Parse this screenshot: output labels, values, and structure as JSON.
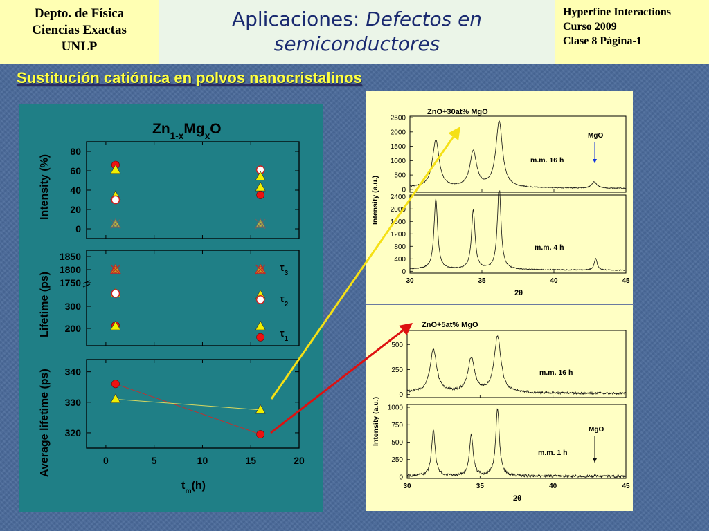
{
  "header": {
    "left_lines": [
      "Depto. de Física",
      "Ciencias Exactas",
      "UNLP"
    ],
    "title_line1_prefix": "Aplicaciones: ",
    "title_line1_italic": "Defectos en",
    "title_line2_italic": "semiconductores",
    "right_lines": [
      "Hyperfine Interactions",
      "Curso 2009",
      "Clase 8  Página-1"
    ]
  },
  "subtitle": "Sustitución catiónica en polvos nanocristalinos",
  "colors": {
    "red": "#ee1111",
    "yellow": "#f0f000",
    "arrow_yellow": "#f5e015",
    "arrow_red": "#dd1111"
  },
  "chart_data": [
    {
      "type": "scatter",
      "title": {
        "main": "Zn",
        "sub1": "1-x",
        "mid": "Mg",
        "sub2": "x",
        "end": "O"
      },
      "xlabel": {
        "main": "t",
        "sub": "m",
        "end": "(h)"
      },
      "xlim": [
        -2,
        20
      ],
      "xticks": [
        "0",
        "5",
        "10",
        "15",
        "20"
      ],
      "panels": {
        "intensity": {
          "ylabel": "Intensity (%)",
          "ylim": [
            -10,
            90
          ],
          "yticks": [
            "0",
            "20",
            "40",
            "60",
            "80"
          ],
          "points": [
            {
              "x": 1,
              "y": 66,
              "marker": "circle-red"
            },
            {
              "x": 1,
              "y": 61,
              "marker": "triangle-yellow"
            },
            {
              "x": 1,
              "y": 34,
              "marker": "triangle-yellow"
            },
            {
              "x": 1,
              "y": 30,
              "marker": "circle-open"
            },
            {
              "x": 1,
              "y": 5,
              "marker": "cross-triangle"
            },
            {
              "x": 16,
              "y": 61,
              "marker": "circle-open"
            },
            {
              "x": 16,
              "y": 54,
              "marker": "triangle-yellow"
            },
            {
              "x": 16,
              "y": 43,
              "marker": "triangle-yellow"
            },
            {
              "x": 16,
              "y": 35,
              "marker": "circle-red"
            },
            {
              "x": 16,
              "y": 5,
              "marker": "cross-triangle"
            }
          ]
        },
        "lifetime": {
          "ylabel": "Lifetime (ps)",
          "yticks_upper": [
            "1750",
            "1800",
            "1850"
          ],
          "yticks_lower": [
            "200",
            "300"
          ],
          "legend": [
            {
              "label": "τ",
              "sub": "3"
            },
            {
              "label": "τ",
              "sub": "2"
            },
            {
              "label": "τ",
              "sub": "1"
            }
          ],
          "points": [
            {
              "x": 1,
              "y": 1800,
              "marker": "cross-triangle-red"
            },
            {
              "x": 1,
              "y": 360,
              "marker": "triangle-yellow"
            },
            {
              "x": 1,
              "y": 358,
              "marker": "circle-open"
            },
            {
              "x": 1,
              "y": 213,
              "marker": "circle-red"
            },
            {
              "x": 1,
              "y": 210,
              "marker": "triangle-yellow"
            },
            {
              "x": 16,
              "y": 1800,
              "marker": "cross-triangle-red"
            },
            {
              "x": 16,
              "y": 350,
              "marker": "triangle-yellow"
            },
            {
              "x": 16,
              "y": 330,
              "marker": "circle-open"
            },
            {
              "x": 16,
              "y": 210,
              "marker": "triangle-yellow"
            },
            {
              "x": 16,
              "y": 160,
              "marker": "circle-red"
            }
          ]
        },
        "average": {
          "ylabel": "Average lifetime (ps)",
          "ylim": [
            315,
            344
          ],
          "yticks": [
            "320",
            "330",
            "340"
          ],
          "series": [
            {
              "marker": "circle-red",
              "x": [
                1,
                16
              ],
              "y": [
                336,
                319.5
              ]
            },
            {
              "marker": "triangle-yellow",
              "x": [
                1,
                16
              ],
              "y": [
                331,
                327.5
              ]
            }
          ]
        }
      }
    },
    {
      "type": "line",
      "title": "ZnO+30at% MgO",
      "xlabel": "2θ",
      "ylabel": "Intensity (a.u.)",
      "xlim": [
        30,
        45
      ],
      "xticks": [
        "30",
        "35",
        "40",
        "45"
      ],
      "annotations": [
        "MgO"
      ],
      "panels": [
        {
          "label": "m.m. 16 h",
          "ylim": [
            -100,
            2550
          ],
          "yticks": [
            "0",
            "500",
            "1000",
            "1500",
            "2000",
            "2500"
          ],
          "peaks": [
            [
              31.8,
              1650
            ],
            [
              34.4,
              1250
            ],
            [
              36.2,
              2300
            ],
            [
              42.8,
              220
            ]
          ],
          "width": 0.55,
          "baseline": 30
        },
        {
          "label": "m.m. 4 h",
          "ylim": [
            -60,
            2450
          ],
          "yticks": [
            "0",
            "400",
            "800",
            "1200",
            "1600",
            "2000",
            "2400"
          ],
          "peaks": [
            [
              31.8,
              2250
            ],
            [
              34.4,
              1900
            ],
            [
              36.2,
              2700
            ],
            [
              42.9,
              380
            ]
          ],
          "width": 0.3,
          "baseline": 30
        }
      ]
    },
    {
      "type": "line",
      "title": "ZnO+5at% MgO",
      "xlabel": "2θ",
      "ylabel": "Intensity (a.u.)",
      "xlim": [
        30,
        45
      ],
      "xticks": [
        "30",
        "35",
        "40",
        "45"
      ],
      "annotations": [
        "MgO"
      ],
      "panels": [
        {
          "label": "m.m. 16 h",
          "ylim": [
            -30,
            640
          ],
          "yticks": [
            "0",
            "250",
            "500"
          ],
          "peaks": [
            [
              31.8,
              430
            ],
            [
              34.4,
              340
            ],
            [
              36.2,
              560
            ]
          ],
          "width": 0.55,
          "baseline": 10
        },
        {
          "label": "m.m. 1 h",
          "ylim": [
            -20,
            1040
          ],
          "yticks": [
            "0",
            "250",
            "500",
            "750",
            "1000"
          ],
          "peaks": [
            [
              31.8,
              660
            ],
            [
              34.4,
              590
            ],
            [
              36.2,
              960
            ],
            [
              42.9,
              15
            ]
          ],
          "width": 0.3,
          "baseline": 8
        }
      ]
    }
  ]
}
